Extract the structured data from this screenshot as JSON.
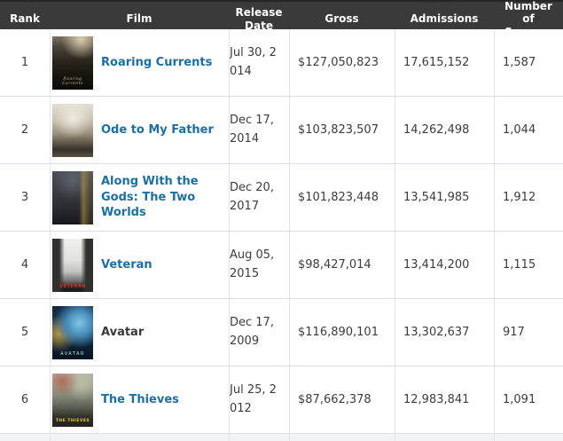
{
  "table": {
    "headers": [
      "Rank",
      "Film",
      "Release Date",
      "Gross",
      "Admissions",
      "Number of Screens"
    ],
    "rows": [
      {
        "rank": "1",
        "film": "Roaring Currents",
        "is_link": true,
        "poster": "roaring-currents",
        "poster_caption": "Roaring\nCurrents",
        "release_date": "Jul 30, 2\n014",
        "gross": "$127,050,823",
        "admissions": "17,615,152",
        "screens": "1,587"
      },
      {
        "rank": "2",
        "film": "Ode to My Father",
        "is_link": true,
        "poster": "ode-to-my-father",
        "poster_caption": "",
        "release_date": "Dec 17,\n2014",
        "gross": "$103,823,507",
        "admissions": "14,262,498",
        "screens": "1,044"
      },
      {
        "rank": "3",
        "film": "Along With the Gods: The Two Worlds",
        "is_link": true,
        "poster": "along-with-the-gods",
        "poster_caption": "",
        "release_date": "Dec 20,\n2017",
        "gross": "$101,823,448",
        "admissions": "13,541,985",
        "screens": "1,912"
      },
      {
        "rank": "4",
        "film": "Veteran",
        "is_link": true,
        "poster": "veteran",
        "poster_caption": "VETERAN",
        "release_date": "Aug 05,\n2015",
        "gross": "$98,427,014",
        "admissions": "13,414,200",
        "screens": "1,115"
      },
      {
        "rank": "5",
        "film": "Avatar",
        "is_link": false,
        "poster": "avatar",
        "poster_caption": "AVATAR",
        "release_date": "Dec 17,\n2009",
        "gross": "$116,890,101",
        "admissions": "13,302,637",
        "screens": "917"
      },
      {
        "rank": "6",
        "film": "The Thieves",
        "is_link": true,
        "poster": "the-thieves",
        "poster_caption": "THE THIEVES",
        "release_date": "Jul 25, 2\n012",
        "gross": "$87,662,378",
        "admissions": "12,983,841",
        "screens": "1,091"
      }
    ]
  },
  "colors": {
    "header_bg": "#3a3a3a",
    "header_text": "#ffffff",
    "link": "#1a6fa3",
    "body_text": "#3c3c3c",
    "row_border": "#d9e0e6",
    "column_border": "#e0e6eb"
  }
}
